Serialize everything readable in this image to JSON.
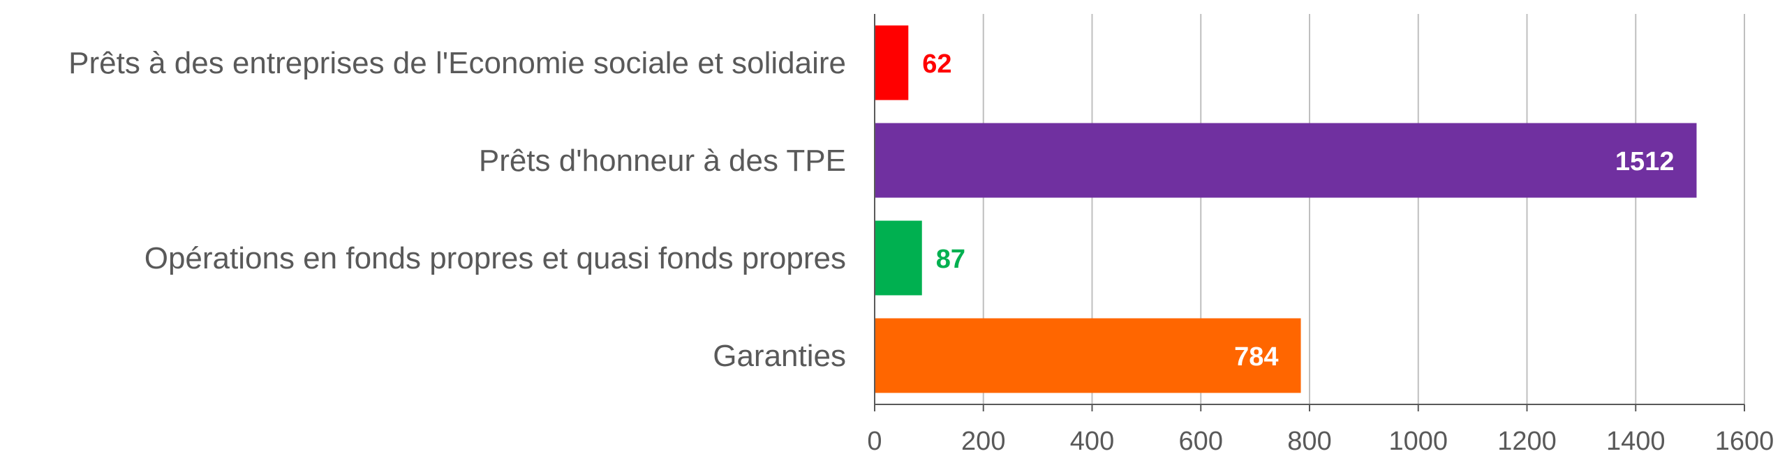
{
  "chart_data": {
    "type": "bar",
    "orientation": "horizontal",
    "categories": [
      "Prêts à des entreprises de l'Economie sociale et solidaire",
      "Prêts d'honneur à des TPE",
      "Opérations en fonds propres et quasi fonds propres",
      "Garanties"
    ],
    "values": [
      62,
      1512,
      87,
      784
    ],
    "value_labels": [
      "62",
      "1512",
      "87",
      "784"
    ],
    "colors": [
      "#ff0000",
      "#7030a0",
      "#00b050",
      "#ff6600"
    ],
    "label_colors": [
      "#ff0000",
      "#ffffff",
      "#00b050",
      "#ffffff"
    ],
    "label_position": [
      "outside",
      "inside",
      "outside",
      "inside"
    ],
    "xlim": [
      0,
      1600
    ],
    "xticks": [
      0,
      200,
      400,
      600,
      800,
      1000,
      1200,
      1400,
      1600
    ],
    "xtick_labels": [
      "0",
      "200",
      "400",
      "600",
      "800",
      "1000",
      "1200",
      "1400",
      "1600"
    ],
    "grid": "vertical",
    "legend": "none",
    "title": "",
    "xlabel": "",
    "ylabel": ""
  }
}
